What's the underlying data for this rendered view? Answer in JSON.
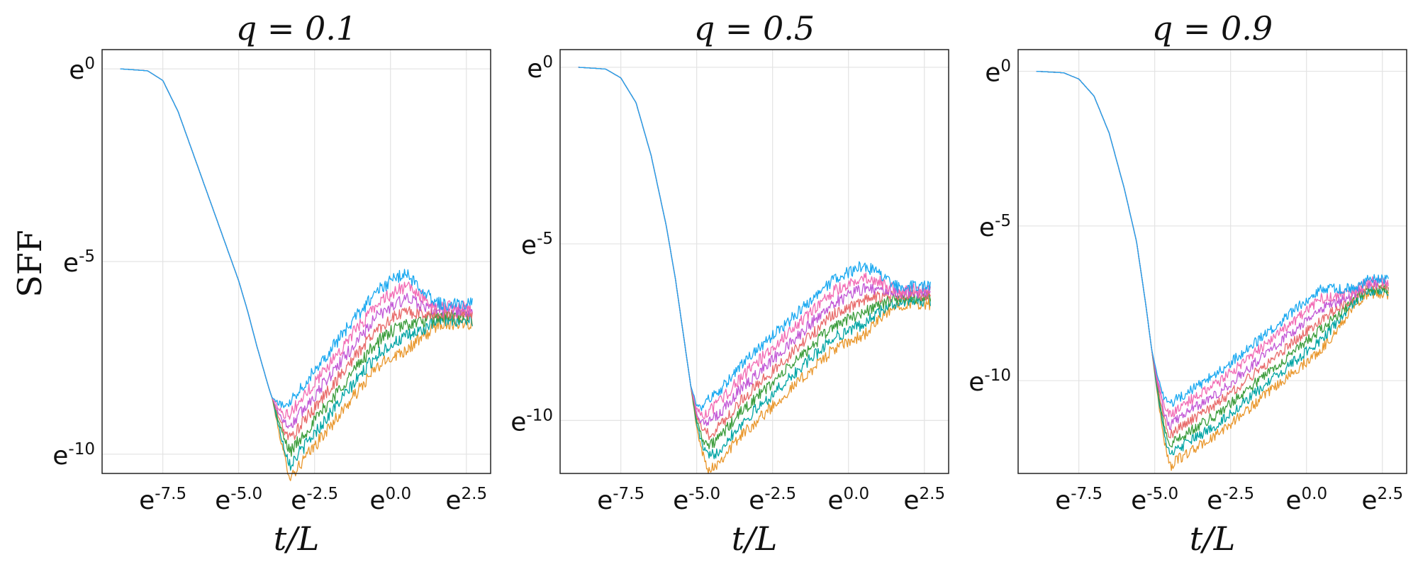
{
  "figure": {
    "ylabel": "SFF",
    "xlabel": "t/L",
    "series_colors": [
      "#e9972d",
      "#00a4a4",
      "#3c9d3c",
      "#e86b6b",
      "#c258d6",
      "#f26bb4",
      "#19a8f0"
    ]
  },
  "chart_data": [
    {
      "type": "line",
      "title": "q = 0.1",
      "xlabel": "t/L",
      "ylabel": "SFF",
      "xscale": "ln",
      "yscale": "ln",
      "xlim": [
        -9.5,
        3.3
      ],
      "ylim": [
        -10.5,
        0.5
      ],
      "xticks": [
        -7.5,
        -5.0,
        -2.5,
        0.0,
        2.5
      ],
      "xtick_labels": [
        "-7.5",
        "-5.0",
        "-2.5",
        "0.0",
        "2.5"
      ],
      "yticks": [
        0,
        -5,
        -10
      ],
      "ytick_labels": [
        "0",
        "-5",
        "-10"
      ],
      "grid": true,
      "series_count": 7,
      "curve_ln_sff": {
        "x": [
          -8.9,
          -8.0,
          -7.5,
          -7.0,
          -6.5,
          -6.0,
          -5.5,
          -5.0,
          -4.7,
          -4.4,
          -4.0,
          -3.7,
          -3.5,
          -3.3,
          -3.0,
          -2.5,
          -2.0,
          -1.5,
          -1.0,
          -0.5,
          0.0,
          0.5,
          1.0,
          1.5,
          2.0,
          2.7
        ],
        "y": [
          0.0,
          -0.05,
          -0.3,
          -1.1,
          -2.2,
          -3.3,
          -4.4,
          -5.5,
          -6.3,
          -7.2,
          -8.3,
          -9.0,
          -9.4,
          -9.6,
          -9.3,
          -8.8,
          -8.3,
          -7.8,
          -7.3,
          -6.8,
          -6.5,
          -6.3,
          -6.35,
          -6.35,
          -6.35,
          -6.35
        ]
      }
    },
    {
      "type": "line",
      "title": "q = 0.5",
      "xlabel": "t/L",
      "ylabel": "SFF",
      "xscale": "ln",
      "yscale": "ln",
      "xlim": [
        -9.5,
        3.3
      ],
      "ylim": [
        -11.5,
        0.5
      ],
      "xticks": [
        -7.5,
        -5.0,
        -2.5,
        0.0,
        2.5
      ],
      "xtick_labels": [
        "-7.5",
        "-5.0",
        "-2.5",
        "0.0",
        "2.5"
      ],
      "yticks": [
        0,
        -5,
        -10
      ],
      "ytick_labels": [
        "0",
        "-5",
        "-10"
      ],
      "grid": true,
      "series_count": 7,
      "curve_ln_sff": {
        "x": [
          -8.9,
          -8.0,
          -7.5,
          -7.0,
          -6.5,
          -6.0,
          -5.7,
          -5.4,
          -5.2,
          -5.0,
          -4.8,
          -4.6,
          -4.3,
          -4.0,
          -3.5,
          -3.0,
          -2.5,
          -2.0,
          -1.5,
          -1.0,
          -0.5,
          0.0,
          0.5,
          1.0,
          2.0,
          2.7
        ],
        "y": [
          0.0,
          -0.05,
          -0.3,
          -1.0,
          -2.5,
          -4.5,
          -6.0,
          -7.8,
          -9.0,
          -9.9,
          -10.3,
          -10.4,
          -10.2,
          -9.9,
          -9.4,
          -9.0,
          -8.6,
          -8.2,
          -7.8,
          -7.4,
          -7.0,
          -6.8,
          -6.6,
          -6.5,
          -6.45,
          -6.45
        ]
      }
    },
    {
      "type": "line",
      "title": "q = 0.9",
      "xlabel": "t/L",
      "ylabel": "SFF",
      "xscale": "ln",
      "yscale": "ln",
      "xlim": [
        -9.5,
        3.3
      ],
      "ylim": [
        -13.0,
        0.7
      ],
      "xticks": [
        -7.5,
        -5.0,
        -2.5,
        0.0,
        2.5
      ],
      "xtick_labels": [
        "-7.5",
        "-5.0",
        "-2.5",
        "0.0",
        "2.5"
      ],
      "yticks": [
        0,
        -5,
        -10
      ],
      "ytick_labels": [
        "0",
        "-5",
        "-10"
      ],
      "grid": true,
      "series_count": 7,
      "curve_ln_sff": {
        "x": [
          -8.9,
          -8.0,
          -7.5,
          -7.0,
          -6.5,
          -6.0,
          -5.6,
          -5.3,
          -5.1,
          -4.9,
          -4.7,
          -4.5,
          -4.3,
          -4.0,
          -3.5,
          -3.0,
          -2.5,
          -2.0,
          -1.5,
          -1.0,
          -0.5,
          0.0,
          0.5,
          1.0,
          1.5,
          2.0,
          2.7
        ],
        "y": [
          0.0,
          -0.05,
          -0.25,
          -0.8,
          -2.0,
          -3.8,
          -5.5,
          -7.5,
          -9.0,
          -10.2,
          -11.2,
          -11.8,
          -11.6,
          -11.4,
          -11.1,
          -10.8,
          -10.4,
          -10.0,
          -9.6,
          -9.2,
          -8.8,
          -8.4,
          -8.0,
          -7.7,
          -7.35,
          -6.95,
          -6.95
        ]
      }
    }
  ]
}
